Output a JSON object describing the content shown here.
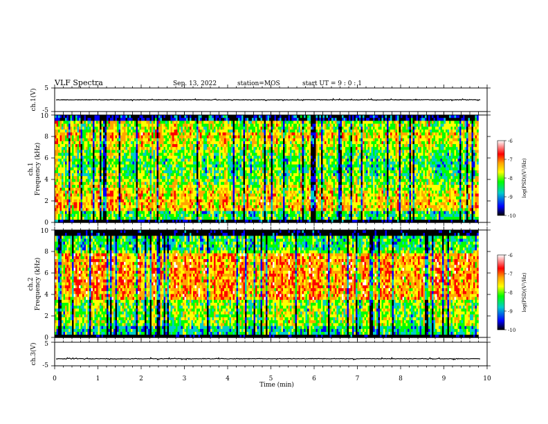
{
  "header": {
    "title": "VLF Spectra",
    "date": "Sep. 13, 2022",
    "station": "station=MOS",
    "start": "start  UT  =   9 : 0  : 1"
  },
  "chart_data": [
    {
      "type": "line",
      "panel": "waveform-ch1",
      "ylabel": "ch.1(V)",
      "ylim": [
        -5,
        5
      ],
      "y_ticks": [
        "5",
        "-5"
      ],
      "xlim": [
        0,
        10
      ],
      "baseline": 0,
      "color": "#000000"
    },
    {
      "type": "heatmap",
      "panel": "spectrogram-ch1",
      "ylabel": "ch.1\nFrequency (kHz)",
      "ylim": [
        0,
        10
      ],
      "y_ticks": [
        "0",
        "2",
        "4",
        "6",
        "8",
        "10"
      ],
      "xlim": [
        0,
        9.8
      ],
      "colorbar": {
        "label": "log(PSD)(V²/Hz)",
        "range": [
          -10,
          -6
        ],
        "ticks": [
          "-6",
          "-7",
          "-8",
          "-9",
          "-10"
        ],
        "colors": [
          "#ffffff",
          "#ff0000",
          "#ffa500",
          "#ffff00",
          "#00ff00",
          "#00cccc",
          "#0000ff",
          "#000000"
        ]
      }
    },
    {
      "type": "heatmap",
      "panel": "spectrogram-ch2",
      "ylabel": "ch.2\nFrequency (kHz)",
      "ylim": [
        0,
        10
      ],
      "y_ticks": [
        "0",
        "2",
        "4",
        "6",
        "8",
        "10"
      ],
      "xlim": [
        0,
        9.8
      ],
      "colorbar": {
        "label": "log(PSD)(V²/Hz)",
        "range": [
          -10,
          -6
        ],
        "ticks": [
          "-6",
          "-7",
          "-8",
          "-9",
          "-10"
        ],
        "colors": [
          "#ffffff",
          "#ff0000",
          "#ffa500",
          "#ffff00",
          "#00ff00",
          "#00cccc",
          "#0000ff",
          "#000000"
        ]
      }
    },
    {
      "type": "line",
      "panel": "waveform-ch3",
      "ylabel": "ch.3(V)",
      "ylim": [
        -5,
        5
      ],
      "y_ticks": [
        "5",
        "-5"
      ],
      "xlim": [
        0,
        10
      ],
      "baseline": -2,
      "color": "#000000"
    }
  ],
  "x_axis": {
    "label": "Time (min)",
    "range": [
      0,
      10
    ],
    "ticks": [
      "0",
      "1",
      "2",
      "3",
      "4",
      "5",
      "6",
      "7",
      "8",
      "9",
      "10"
    ]
  }
}
